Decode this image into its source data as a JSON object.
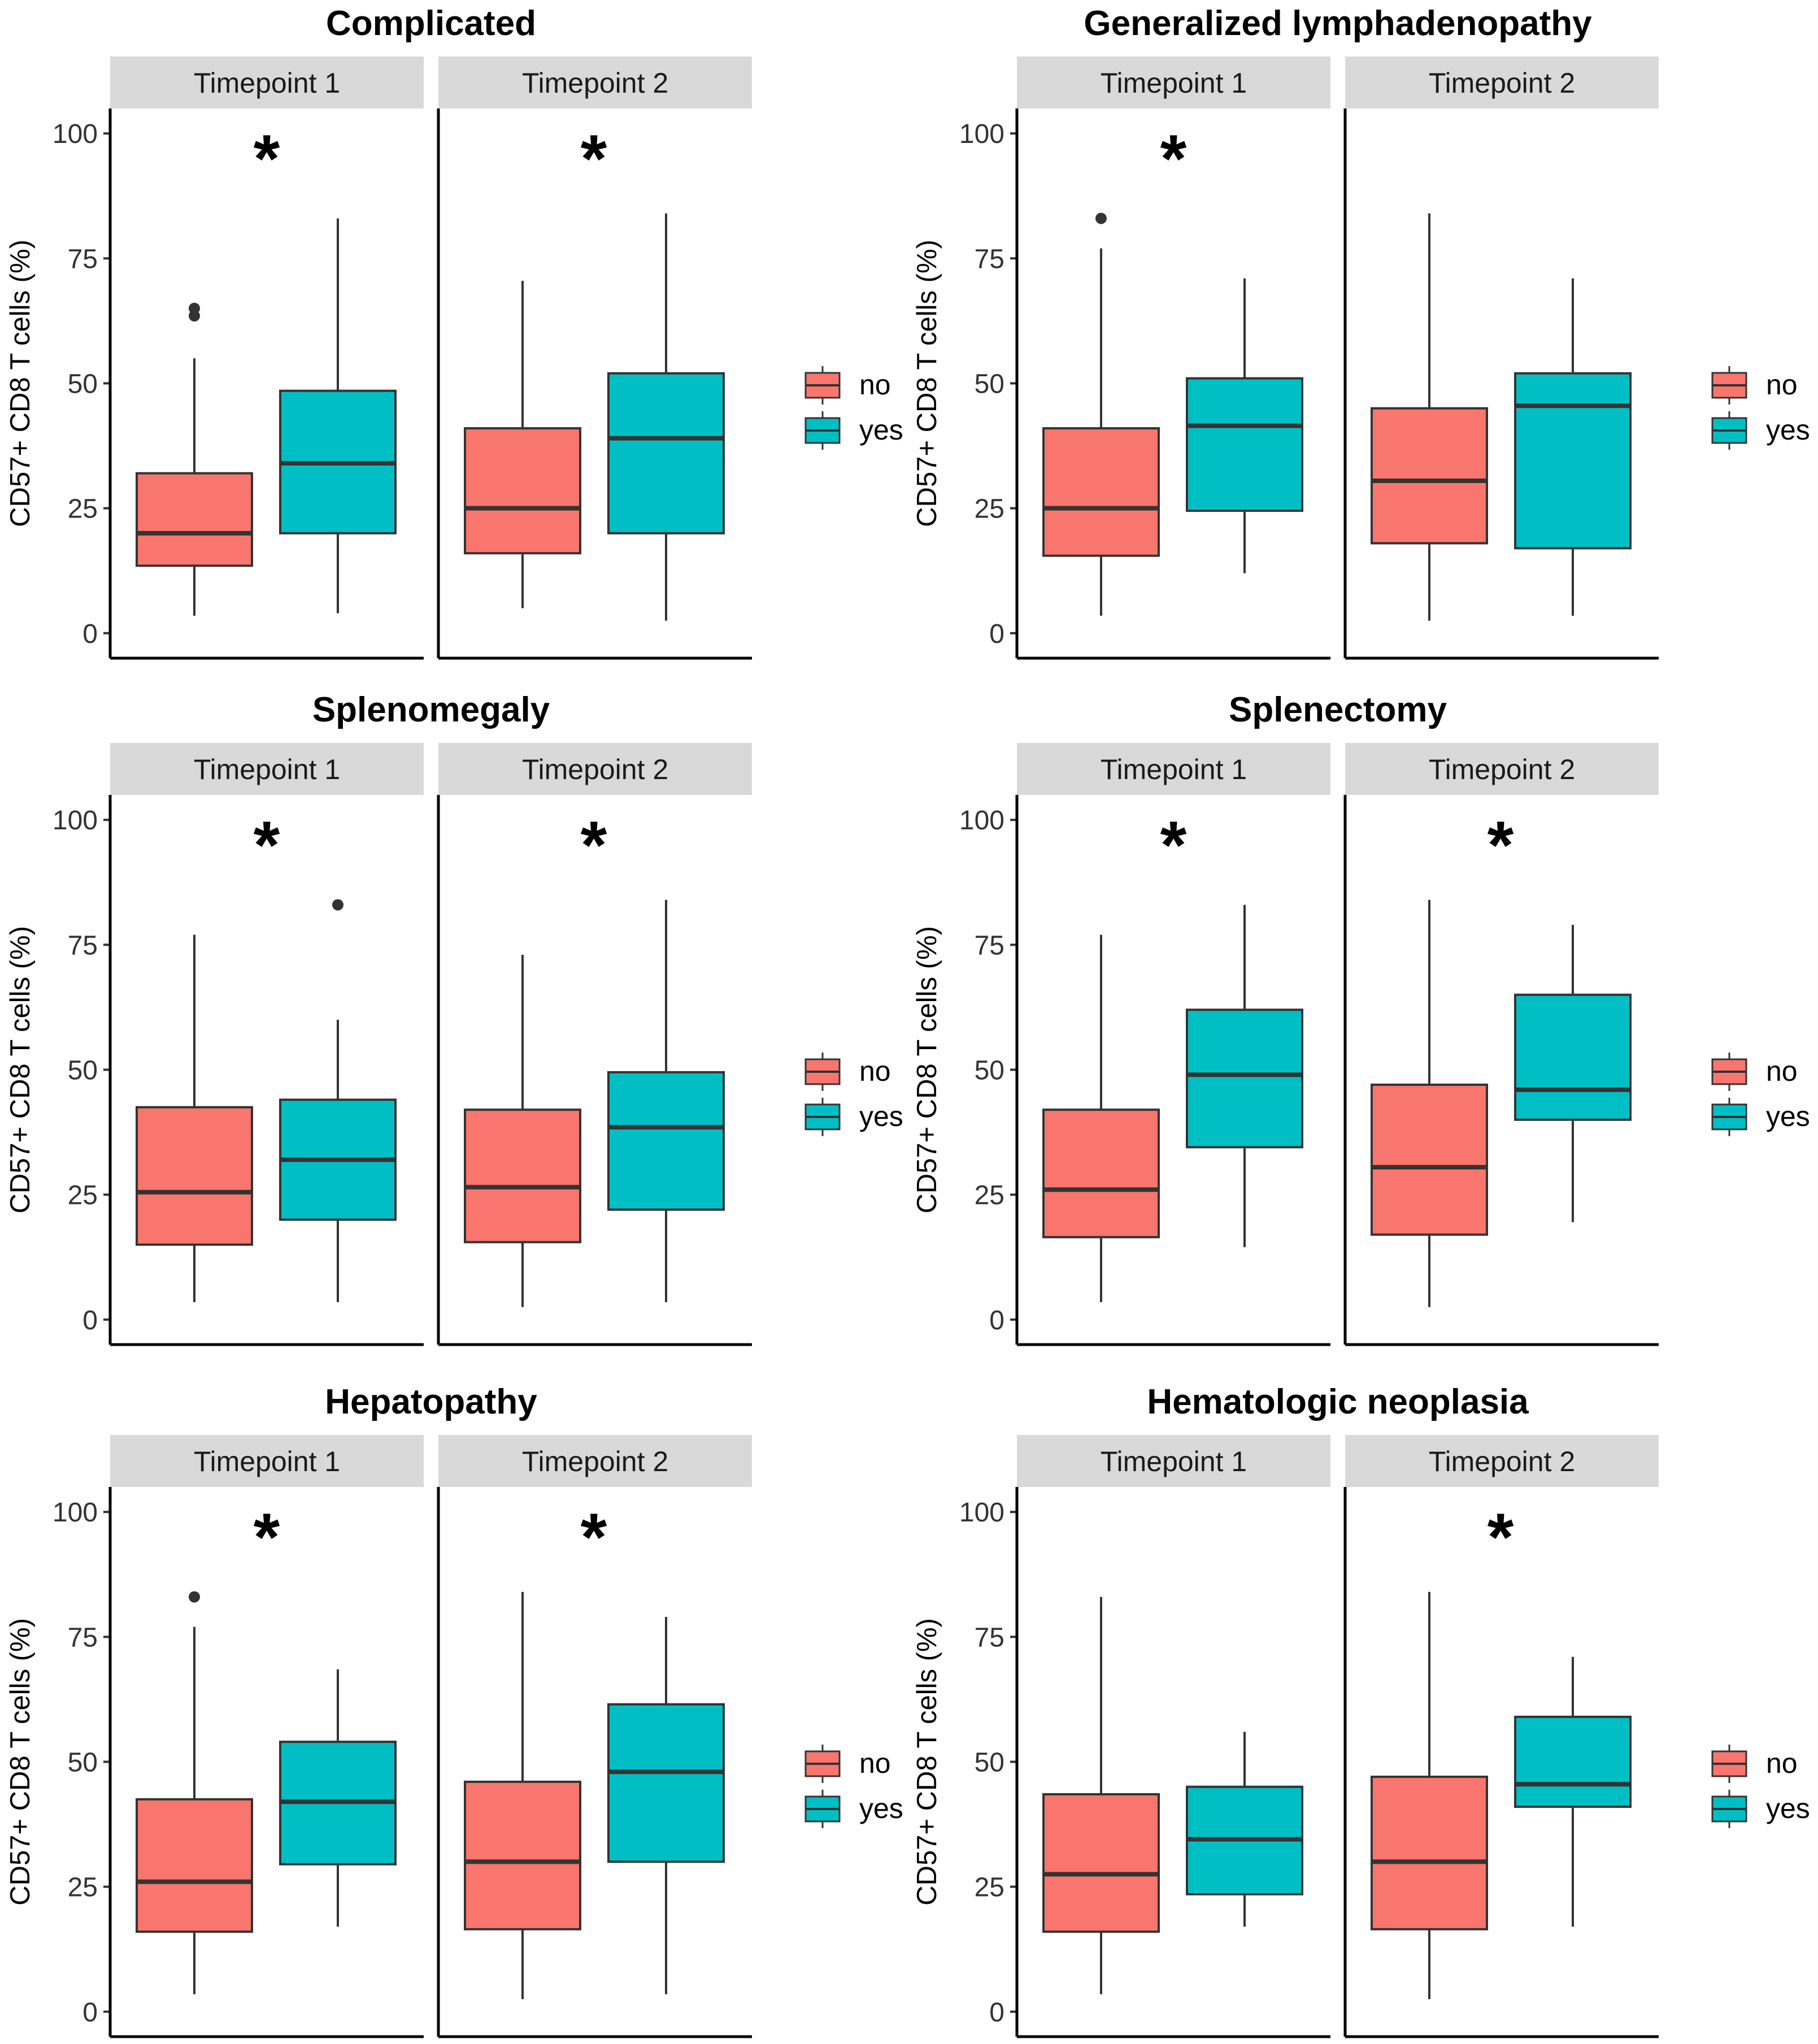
{
  "colors": {
    "no": "#F8766D",
    "yes": "#00BFC4",
    "strip_bg": "#D9D9D9",
    "line": "#333333"
  },
  "chart_data": [
    {
      "type": "box",
      "title": "Complicated",
      "ylabel": "CD57+ CD8 T cells (%)",
      "yticks": [
        0,
        25,
        50,
        75,
        100
      ],
      "ylim": [
        -5,
        105
      ],
      "legend": [
        "no",
        "yes"
      ],
      "facets": [
        {
          "label": "Timepoint 1",
          "sig": "*",
          "boxes": [
            {
              "group": "no",
              "whisker_low": 3.5,
              "q1": 13.5,
              "median": 20,
              "q3": 32,
              "whisker_high": 55,
              "outliers": [
                63.5,
                65
              ]
            },
            {
              "group": "yes",
              "whisker_low": 4,
              "q1": 20,
              "median": 34,
              "q3": 48.5,
              "whisker_high": 83,
              "outliers": []
            }
          ]
        },
        {
          "label": "Timepoint 2",
          "sig": "*",
          "boxes": [
            {
              "group": "no",
              "whisker_low": 5,
              "q1": 16,
              "median": 25,
              "q3": 41,
              "whisker_high": 70.5,
              "outliers": []
            },
            {
              "group": "yes",
              "whisker_low": 2.5,
              "q1": 20,
              "median": 39,
              "q3": 52,
              "whisker_high": 84,
              "outliers": []
            }
          ]
        }
      ]
    },
    {
      "type": "box",
      "title": "Generalized lymphadenopathy",
      "ylabel": "CD57+ CD8 T cells (%)",
      "yticks": [
        0,
        25,
        50,
        75,
        100
      ],
      "ylim": [
        -5,
        105
      ],
      "legend": [
        "no",
        "yes"
      ],
      "facets": [
        {
          "label": "Timepoint 1",
          "sig": "*",
          "boxes": [
            {
              "group": "no",
              "whisker_low": 3.5,
              "q1": 15.5,
              "median": 25,
              "q3": 41,
              "whisker_high": 77,
              "outliers": [
                83
              ]
            },
            {
              "group": "yes",
              "whisker_low": 12,
              "q1": 24.5,
              "median": 41.5,
              "q3": 51,
              "whisker_high": 71,
              "outliers": []
            }
          ]
        },
        {
          "label": "Timepoint 2",
          "sig": "",
          "boxes": [
            {
              "group": "no",
              "whisker_low": 2.5,
              "q1": 18,
              "median": 30.5,
              "q3": 45,
              "whisker_high": 84,
              "outliers": []
            },
            {
              "group": "yes",
              "whisker_low": 3.5,
              "q1": 17,
              "median": 45.5,
              "q3": 52,
              "whisker_high": 71,
              "outliers": []
            }
          ]
        }
      ]
    },
    {
      "type": "box",
      "title": "Splenomegaly",
      "ylabel": "CD57+ CD8 T cells (%)",
      "yticks": [
        0,
        25,
        50,
        75,
        100
      ],
      "ylim": [
        -5,
        105
      ],
      "legend": [
        "no",
        "yes"
      ],
      "facets": [
        {
          "label": "Timepoint 1",
          "sig": "*",
          "boxes": [
            {
              "group": "no",
              "whisker_low": 3.5,
              "q1": 15,
              "median": 25.5,
              "q3": 42.5,
              "whisker_high": 77,
              "outliers": []
            },
            {
              "group": "yes",
              "whisker_low": 3.5,
              "q1": 20,
              "median": 32,
              "q3": 44,
              "whisker_high": 60,
              "outliers": [
                83
              ]
            }
          ]
        },
        {
          "label": "Timepoint 2",
          "sig": "*",
          "boxes": [
            {
              "group": "no",
              "whisker_low": 2.5,
              "q1": 15.5,
              "median": 26.5,
              "q3": 42,
              "whisker_high": 73,
              "outliers": []
            },
            {
              "group": "yes",
              "whisker_low": 3.5,
              "q1": 22,
              "median": 38.5,
              "q3": 49.5,
              "whisker_high": 84,
              "outliers": []
            }
          ]
        }
      ]
    },
    {
      "type": "box",
      "title": "Splenectomy",
      "ylabel": "CD57+ CD8 T cells (%)",
      "yticks": [
        0,
        25,
        50,
        75,
        100
      ],
      "ylim": [
        -5,
        105
      ],
      "legend": [
        "no",
        "yes"
      ],
      "facets": [
        {
          "label": "Timepoint 1",
          "sig": "*",
          "boxes": [
            {
              "group": "no",
              "whisker_low": 3.5,
              "q1": 16.5,
              "median": 26,
              "q3": 42,
              "whisker_high": 77,
              "outliers": []
            },
            {
              "group": "yes",
              "whisker_low": 14.5,
              "q1": 34.5,
              "median": 49,
              "q3": 62,
              "whisker_high": 83,
              "outliers": []
            }
          ]
        },
        {
          "label": "Timepoint 2",
          "sig": "*",
          "boxes": [
            {
              "group": "no",
              "whisker_low": 2.5,
              "q1": 17,
              "median": 30.5,
              "q3": 47,
              "whisker_high": 84,
              "outliers": []
            },
            {
              "group": "yes",
              "whisker_low": 19.5,
              "q1": 40,
              "median": 46,
              "q3": 65,
              "whisker_high": 79,
              "outliers": []
            }
          ]
        }
      ]
    },
    {
      "type": "box",
      "title": "Hepatopathy",
      "ylabel": "CD57+ CD8 T cells (%)",
      "yticks": [
        0,
        25,
        50,
        75,
        100
      ],
      "ylim": [
        -5,
        105
      ],
      "legend": [
        "no",
        "yes"
      ],
      "facets": [
        {
          "label": "Timepoint 1",
          "sig": "*",
          "boxes": [
            {
              "group": "no",
              "whisker_low": 3.5,
              "q1": 16,
              "median": 26,
              "q3": 42.5,
              "whisker_high": 77,
              "outliers": [
                83
              ]
            },
            {
              "group": "yes",
              "whisker_low": 17,
              "q1": 29.5,
              "median": 42,
              "q3": 54,
              "whisker_high": 68.5,
              "outliers": []
            }
          ]
        },
        {
          "label": "Timepoint 2",
          "sig": "*",
          "boxes": [
            {
              "group": "no",
              "whisker_low": 2.5,
              "q1": 16.5,
              "median": 30,
              "q3": 46,
              "whisker_high": 84,
              "outliers": []
            },
            {
              "group": "yes",
              "whisker_low": 3.5,
              "q1": 30,
              "median": 48,
              "q3": 61.5,
              "whisker_high": 79,
              "outliers": []
            }
          ]
        }
      ]
    },
    {
      "type": "box",
      "title": "Hematologic neoplasia",
      "ylabel": "CD57+ CD8 T cells (%)",
      "yticks": [
        0,
        25,
        50,
        75,
        100
      ],
      "ylim": [
        -5,
        105
      ],
      "legend": [
        "no",
        "yes"
      ],
      "facets": [
        {
          "label": "Timepoint 1",
          "sig": "",
          "boxes": [
            {
              "group": "no",
              "whisker_low": 3.5,
              "q1": 16,
              "median": 27.5,
              "q3": 43.5,
              "whisker_high": 83,
              "outliers": []
            },
            {
              "group": "yes",
              "whisker_low": 17,
              "q1": 23.5,
              "median": 34.5,
              "q3": 45,
              "whisker_high": 56,
              "outliers": []
            }
          ]
        },
        {
          "label": "Timepoint 2",
          "sig": "*",
          "boxes": [
            {
              "group": "no",
              "whisker_low": 2.5,
              "q1": 16.5,
              "median": 30,
              "q3": 47,
              "whisker_high": 84,
              "outliers": []
            },
            {
              "group": "yes",
              "whisker_low": 17,
              "q1": 41,
              "median": 45.5,
              "q3": 59,
              "whisker_high": 71,
              "outliers": []
            }
          ]
        }
      ]
    }
  ]
}
